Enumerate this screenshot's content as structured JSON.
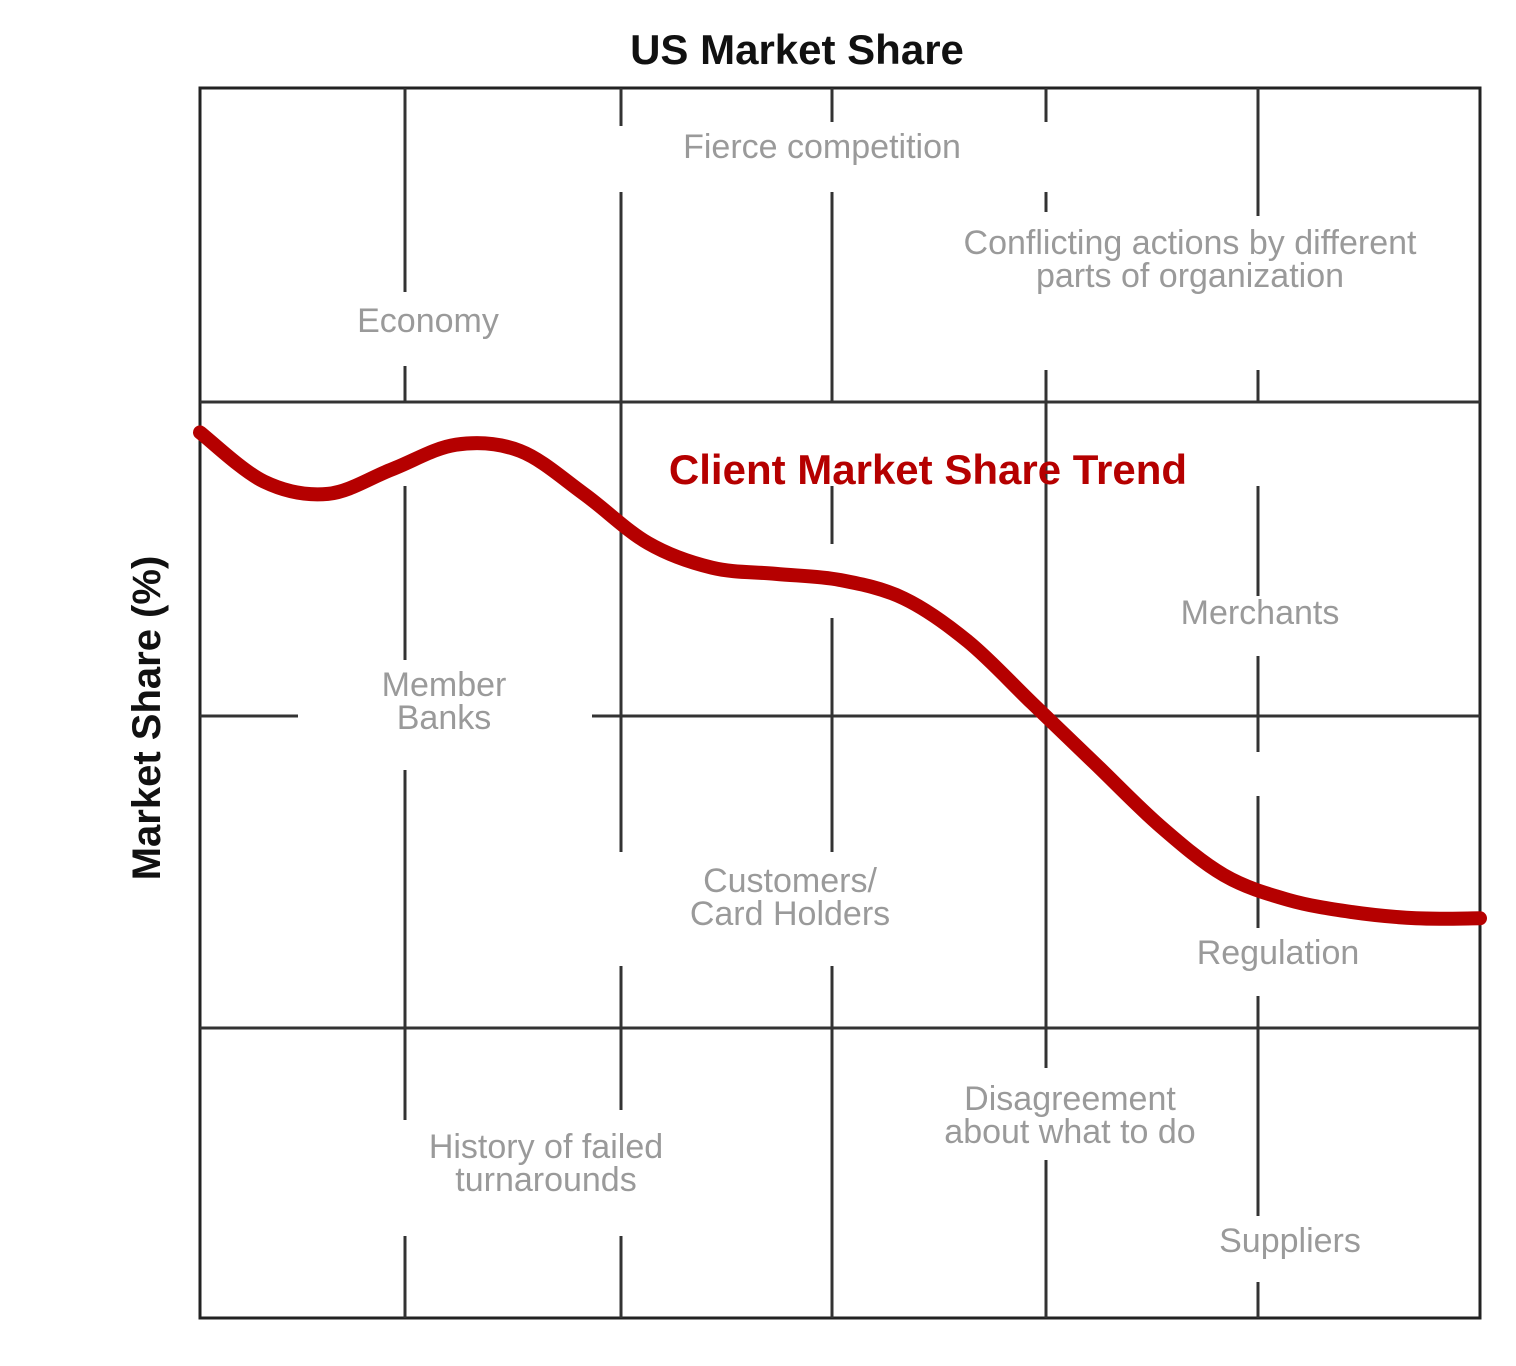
{
  "chart_data": {
    "type": "line",
    "title": "US Market Share",
    "xlabel": "",
    "ylabel": "Market Share (%)",
    "grid": true,
    "series": [
      {
        "name": "Client Market Share Trend",
        "color": "#b50000",
        "x": [
          0,
          5,
          10,
          15,
          20,
          25,
          30,
          35,
          40,
          45,
          50,
          55,
          60,
          65,
          70,
          75,
          80,
          85,
          90,
          95,
          100
        ],
        "values": [
          72,
          68,
          67,
          69,
          71,
          70.5,
          67,
          63,
          61,
          60.5,
          60,
          58.5,
          55,
          50,
          45,
          40,
          36,
          34,
          33,
          32.5,
          32.5
        ]
      }
    ],
    "annotations": [
      {
        "id": "economy",
        "lines": [
          "Economy"
        ]
      },
      {
        "id": "fierce-competition",
        "lines": [
          "Fierce competition"
        ]
      },
      {
        "id": "conflicting-actions",
        "lines": [
          "Conflicting actions by different",
          "parts of organization"
        ]
      },
      {
        "id": "member-banks",
        "lines": [
          "Member",
          "Banks"
        ]
      },
      {
        "id": "merchants",
        "lines": [
          "Merchants"
        ]
      },
      {
        "id": "customers-card-holders",
        "lines": [
          "Customers/",
          "Card Holders"
        ]
      },
      {
        "id": "regulation",
        "lines": [
          "Regulation"
        ]
      },
      {
        "id": "history-failed-turnarounds",
        "lines": [
          "History of failed",
          "turnarounds"
        ]
      },
      {
        "id": "disagreement",
        "lines": [
          "Disagreement",
          "about what to do"
        ]
      },
      {
        "id": "suppliers",
        "lines": [
          "Suppliers"
        ]
      }
    ]
  }
}
